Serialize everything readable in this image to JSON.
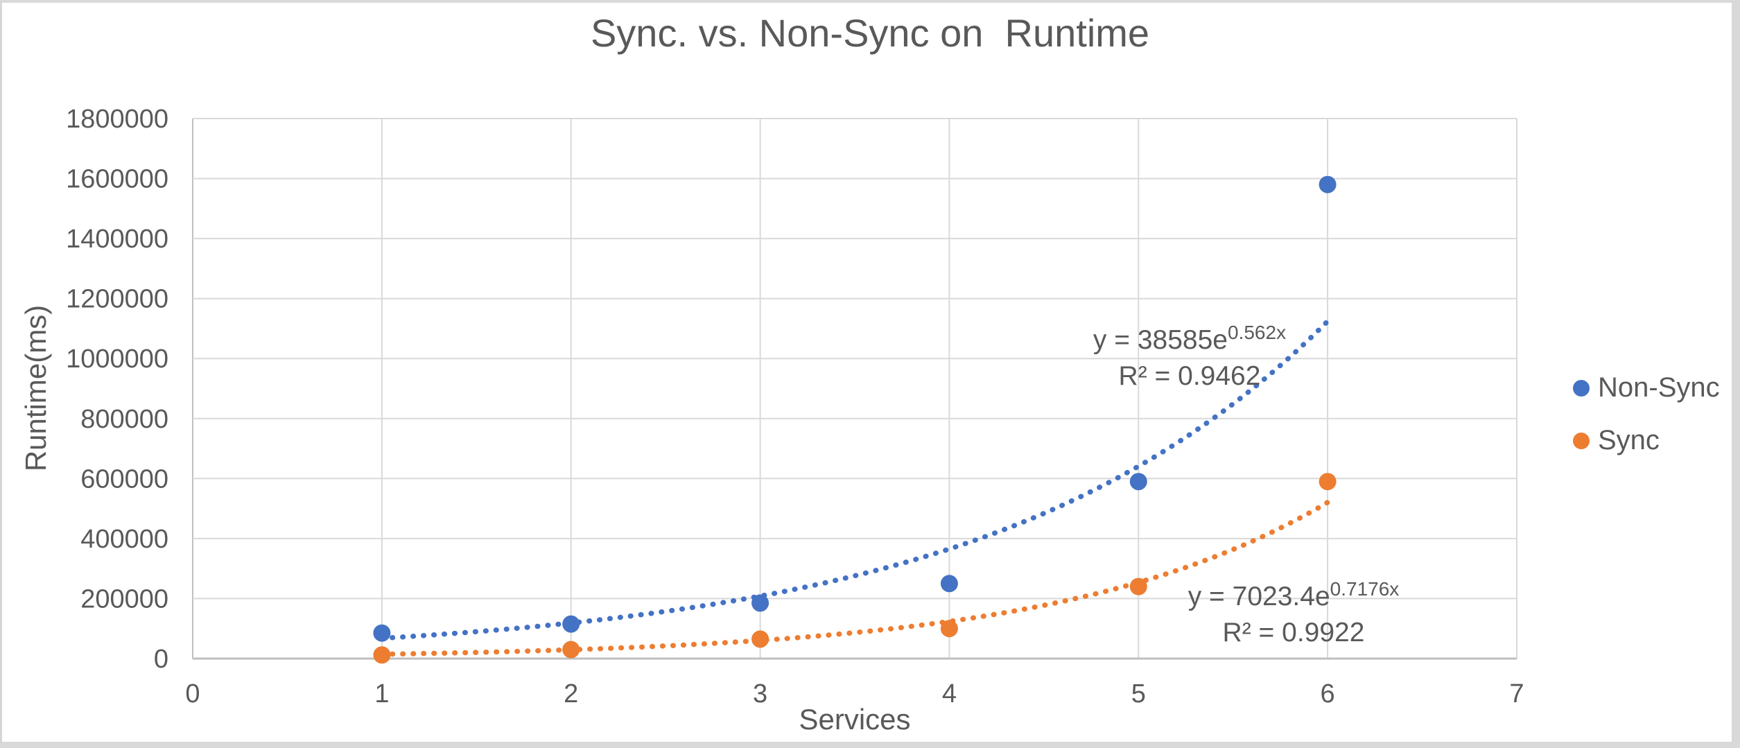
{
  "chart_data": {
    "type": "scatter",
    "title": "Sync. vs. Non-Sync on  Runtime",
    "xlabel": "Services",
    "ylabel": "Runtime(ms)",
    "xlim": [
      0,
      7
    ],
    "ylim": [
      0,
      1800000
    ],
    "x_ticks": [
      0,
      1,
      2,
      3,
      4,
      5,
      6,
      7
    ],
    "y_ticks": [
      0,
      200000,
      400000,
      600000,
      800000,
      1000000,
      1200000,
      1400000,
      1600000,
      1800000
    ],
    "grid": true,
    "legend_position": "right-middle",
    "colors": {
      "gridline": "#D9D9D9",
      "axis_line": "#BFBFBF",
      "text": "#595959"
    },
    "series": [
      {
        "name": "Non-Sync",
        "color": "#4472C4",
        "x": [
          1,
          2,
          3,
          4,
          5,
          6
        ],
        "y": [
          85000,
          115000,
          185000,
          250000,
          590000,
          1580000
        ],
        "trendline": {
          "type": "exponential",
          "coefficient": 38585,
          "rate": 0.562,
          "range_x": [
            1,
            6
          ],
          "equation_base": "y = 38585e",
          "equation_sup": "0.562x",
          "r2": "R² = 0.9462"
        }
      },
      {
        "name": "Sync",
        "color": "#ED7D31",
        "x": [
          1,
          2,
          3,
          4,
          5,
          6
        ],
        "y": [
          12000,
          30000,
          65000,
          100000,
          240000,
          590000
        ],
        "trendline": {
          "type": "exponential",
          "coefficient": 7023.4,
          "rate": 0.7176,
          "range_x": [
            1,
            6
          ],
          "equation_base": "y = 7023.4e",
          "equation_sup": "0.7176x",
          "r2": "R² = 0.9922"
        }
      }
    ]
  }
}
